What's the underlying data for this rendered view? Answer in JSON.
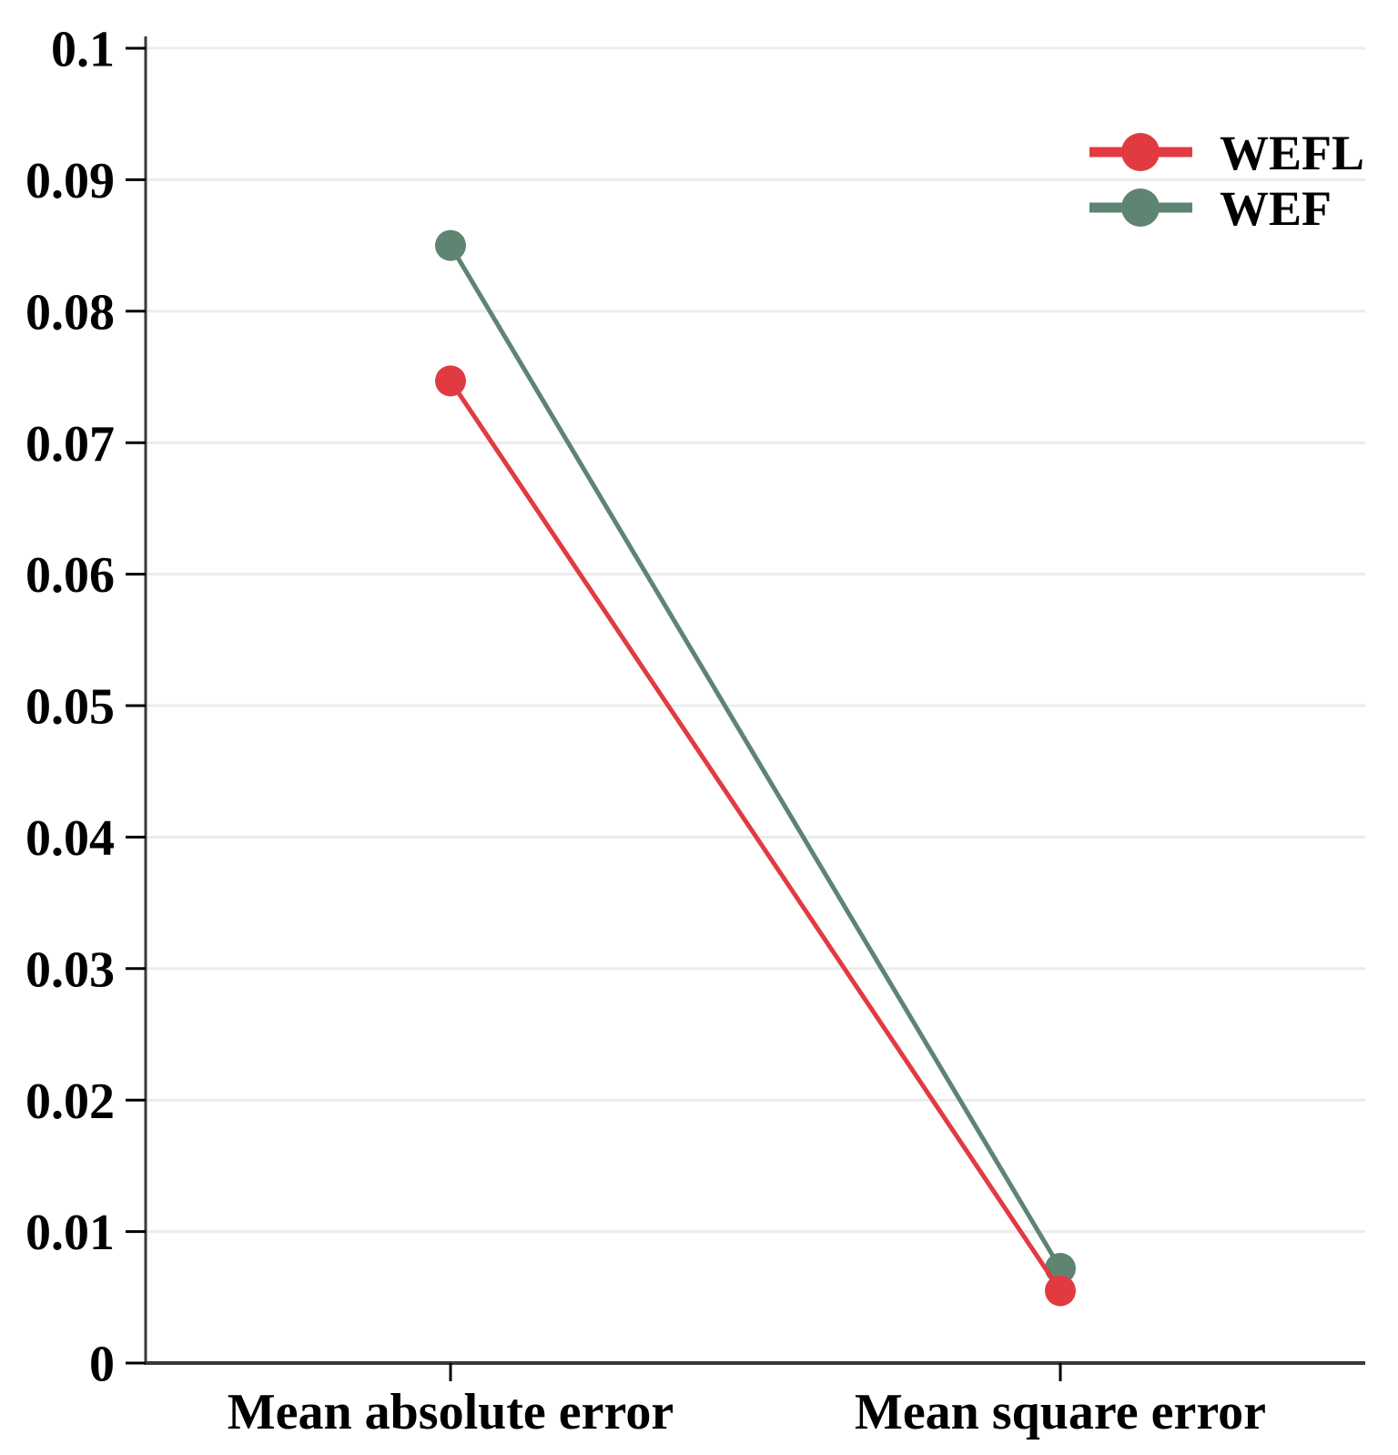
{
  "chart_data": {
    "type": "line",
    "categories": [
      "Mean absolute error",
      "Mean square error"
    ],
    "series": [
      {
        "name": "WEFL",
        "color": "#e13b41",
        "values": [
          0.0747,
          0.0055
        ]
      },
      {
        "name": "WEF",
        "color": "#5e8472",
        "values": [
          0.085,
          0.0072
        ]
      }
    ],
    "title": "",
    "xlabel": "",
    "ylabel": "",
    "ylim": [
      0,
      0.1
    ],
    "ytick_step": 0.01,
    "ytick_labels": [
      "0",
      "0.01",
      "0.02",
      "0.03",
      "0.04",
      "0.05",
      "0.06",
      "0.07",
      "0.08",
      "0.09",
      "0.1"
    ],
    "grid": "horizontal",
    "gridline_color": "#ececec",
    "axis_color": "#3a3a3a",
    "legend_position": "upper right",
    "legend_entries": [
      "WEFL",
      "WEF"
    ]
  }
}
